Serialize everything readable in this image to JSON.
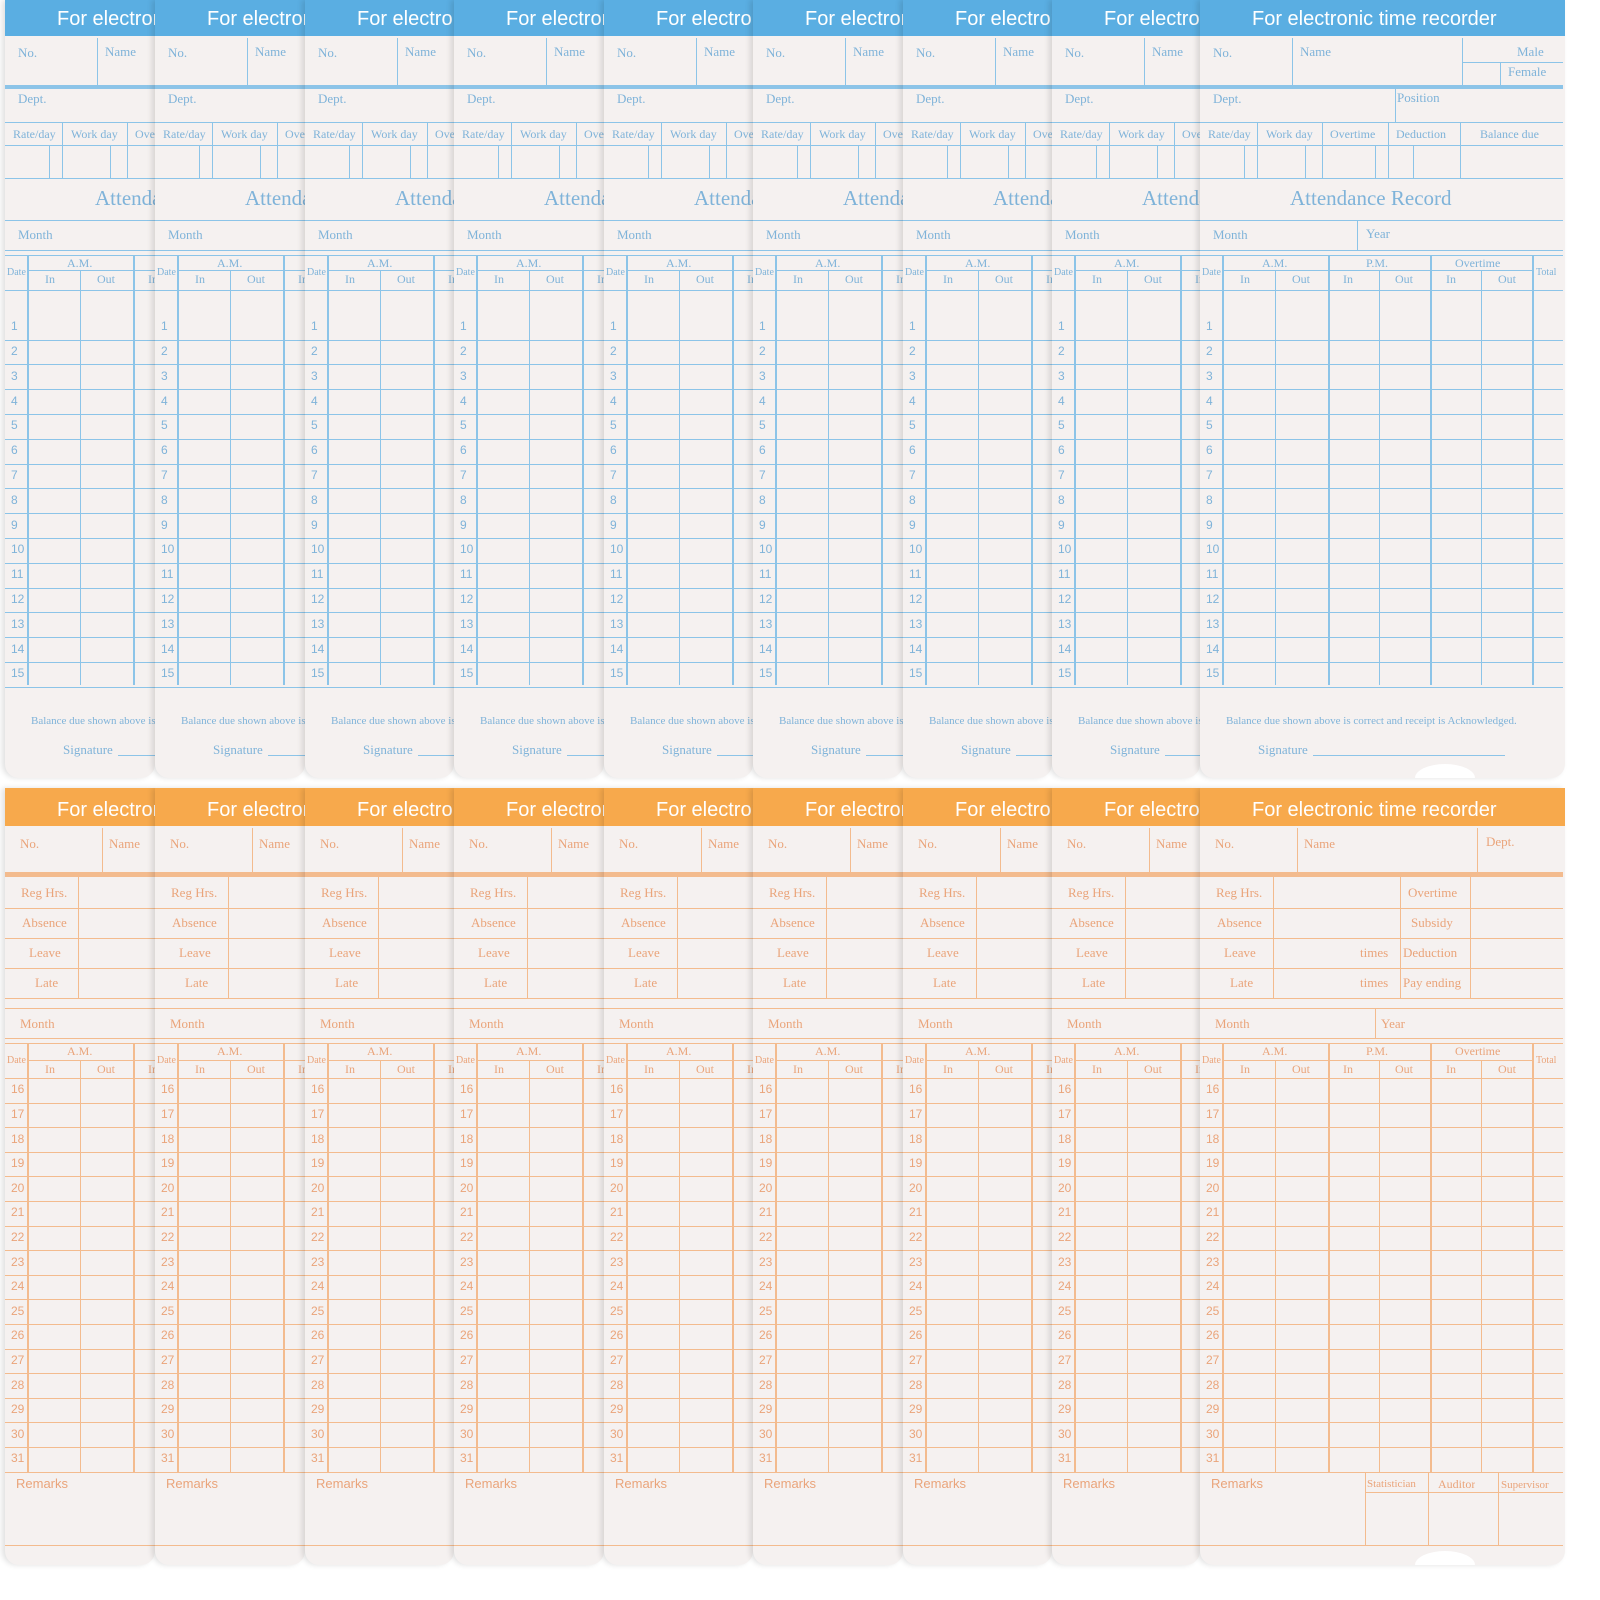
{
  "colors": {
    "blue": "#5aaee2",
    "orange": "#f7a94c"
  },
  "blue_card": {
    "title": "For electronic time recorder",
    "no": "No.",
    "name": "Name",
    "male": "Male",
    "female": "Female",
    "dept": "Dept.",
    "position": "Position",
    "rate_day": "Rate/day",
    "work_day": "Work day",
    "overtime": "Overtime",
    "deduction": "Deduction",
    "balance_due": "Balance due",
    "record_title": "Attendance   Record",
    "month": "Month",
    "year": "Year",
    "date": "Date",
    "am": "A.M.",
    "pm": "P.M.",
    "overtime_col": "Overtime",
    "total": "Total",
    "in": "In",
    "out": "Out",
    "days": [
      "1",
      "2",
      "3",
      "4",
      "5",
      "6",
      "7",
      "8",
      "9",
      "10",
      "11",
      "12",
      "13",
      "14",
      "15"
    ],
    "acknowledgement": "Balance due shown above is correct and receipt is Acknowledged.",
    "signature": "Signature"
  },
  "orange_card": {
    "title": "For electronic time recorder",
    "no": "No.",
    "name": "Name",
    "dept": "Dept.",
    "reg_hrs": "Reg Hrs.",
    "absence": "Absence",
    "leave": "Leave",
    "late": "Late",
    "times": "times",
    "overtime": "Overtime",
    "subsidy": "Subsidy",
    "deduction": "Deduction",
    "pay_ending": "Pay ending",
    "month": "Month",
    "year": "Year",
    "date": "Date",
    "am": "A.M.",
    "pm": "P.M.",
    "overtime_col": "Overtime",
    "total": "Total",
    "in": "In",
    "out": "Out",
    "days": [
      "16",
      "17",
      "18",
      "19",
      "20",
      "21",
      "22",
      "23",
      "24",
      "25",
      "26",
      "27",
      "28",
      "29",
      "30",
      "31"
    ],
    "remarks": "Remarks",
    "statistician": "Statistician",
    "auditor": "Auditor",
    "supervisor": "Supervisor"
  },
  "card_count": 9
}
